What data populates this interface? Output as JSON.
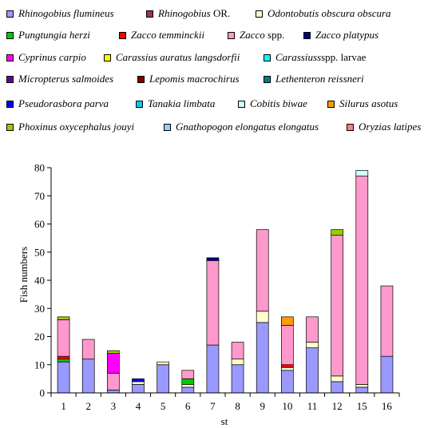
{
  "chart_data": {
    "type": "bar",
    "stacked": true,
    "xlabel": "st",
    "ylabel": "Fish numbers",
    "ylim": [
      0,
      80
    ],
    "yticks": [
      0,
      10,
      20,
      30,
      40,
      50,
      60,
      70,
      80
    ],
    "grid": false,
    "legend_position": "top",
    "categories": [
      "1",
      "2",
      "3",
      "4",
      "5",
      "6",
      "7",
      "8",
      "9",
      "10",
      "11",
      "12",
      "15",
      "16"
    ],
    "series": [
      {
        "name": "Rhinogobius flumineus",
        "name_suffix": "",
        "color": "#9999ff",
        "values": [
          11,
          12,
          1,
          3,
          10,
          2,
          17,
          10,
          25,
          8,
          16,
          4,
          2,
          13
        ]
      },
      {
        "name": "Rhinogobius",
        "name_suffix": " OR.",
        "color": "#993366",
        "values": [
          0,
          0,
          0,
          0,
          0,
          0,
          0,
          0,
          0,
          0,
          0,
          0,
          0,
          0
        ]
      },
      {
        "name": "Odontobutis obscura obscura",
        "name_suffix": "",
        "color": "#ffffcc",
        "values": [
          0,
          0,
          0,
          1,
          1,
          1,
          0,
          2,
          4,
          1,
          2,
          2,
          1,
          0
        ]
      },
      {
        "name": "Pungtungia herzi",
        "name_suffix": "",
        "color": "#00cc00",
        "values": [
          1,
          0,
          0,
          0,
          0,
          2,
          0,
          0,
          0,
          0,
          0,
          0,
          0,
          0
        ]
      },
      {
        "name": "Zacco temminckii",
        "name_suffix": "",
        "color": "#ff0000",
        "values": [
          1,
          0,
          0,
          0,
          0,
          0,
          0,
          0,
          0,
          1,
          0,
          0,
          0,
          0
        ]
      },
      {
        "name": "Zacco",
        "name_suffix": " spp.",
        "color": "#ff99cc",
        "values": [
          13,
          7,
          6,
          0,
          0,
          3,
          30,
          6,
          29,
          14,
          9,
          50,
          74,
          25
        ]
      },
      {
        "name": "Zacco platypus",
        "name_suffix": "",
        "color": "#000080",
        "values": [
          0,
          0,
          0,
          0,
          0,
          0,
          1,
          0,
          0,
          0,
          0,
          0,
          0,
          0
        ]
      },
      {
        "name": "Cyprinus carpio",
        "name_suffix": "",
        "color": "#ff00ff",
        "values": [
          0,
          0,
          7,
          0,
          0,
          0,
          0,
          0,
          0,
          0,
          0,
          0,
          0,
          0
        ]
      },
      {
        "name": "Carassius auratus langsdorfii",
        "name_suffix": "",
        "color": "#ffff00",
        "values": [
          0,
          0,
          0,
          0,
          0,
          0,
          0,
          0,
          0,
          0,
          0,
          0,
          0,
          0
        ]
      },
      {
        "name": "Carassiuss",
        "name_suffix": "spp. larvae",
        "color": "#00ffff",
        "values": [
          0,
          0,
          0,
          0,
          0,
          0,
          0,
          0,
          0,
          0,
          0,
          0,
          0,
          0
        ]
      },
      {
        "name": "Micropterus salmoides",
        "name_suffix": "",
        "color": "#660099",
        "values": [
          0,
          0,
          0,
          0,
          0,
          0,
          0,
          0,
          0,
          0,
          0,
          0,
          0,
          0
        ]
      },
      {
        "name": "Lepomis macrochirus",
        "name_suffix": "",
        "color": "#800000",
        "values": [
          0,
          0,
          0,
          0,
          0,
          0,
          0,
          0,
          0,
          0,
          0,
          0,
          0,
          0
        ]
      },
      {
        "name": "Lethenteron reissneri",
        "name_suffix": "",
        "color": "#008080",
        "values": [
          0,
          0,
          0,
          0,
          0,
          0,
          0,
          0,
          0,
          0,
          0,
          0,
          0,
          0
        ]
      },
      {
        "name": "Pseudorasbora parva",
        "name_suffix": "",
        "color": "#0000ff",
        "values": [
          0,
          0,
          0,
          1,
          0,
          0,
          0,
          0,
          0,
          0,
          0,
          0,
          0,
          0
        ]
      },
      {
        "name": "Tanakia limbata",
        "name_suffix": "",
        "color": "#00ccff",
        "values": [
          0,
          0,
          0,
          0,
          0,
          0,
          0,
          0,
          0,
          0,
          0,
          0,
          0,
          0
        ]
      },
      {
        "name": "Cobitis biwae",
        "name_suffix": "",
        "color": "#ccffff",
        "values": [
          0,
          0,
          0,
          0,
          0,
          0,
          0,
          0,
          0,
          0,
          0,
          0,
          2,
          0
        ]
      },
      {
        "name": "Silurus asotus",
        "name_suffix": "",
        "color": "#ff9900",
        "values": [
          0,
          0,
          0,
          0,
          0,
          0,
          0,
          0,
          0,
          3,
          0,
          0,
          0,
          0
        ]
      },
      {
        "name": "Phoxinus oxycephalus jouyi",
        "name_suffix": "",
        "color": "#99cc00",
        "values": [
          1,
          0,
          1,
          0,
          0,
          0,
          0,
          0,
          0,
          0,
          0,
          2,
          0,
          0
        ]
      },
      {
        "name": "Gnathopogon elongatus elongatus",
        "name_suffix": "",
        "color": "#99ccff",
        "values": [
          0,
          0,
          0,
          0,
          0,
          0,
          0,
          0,
          0,
          0,
          0,
          0,
          0,
          0
        ]
      },
      {
        "name": "Oryzias latipes",
        "name_suffix": "",
        "color": "#ff8080",
        "values": [
          0,
          0,
          0,
          0,
          0,
          0,
          0,
          0,
          0,
          0,
          0,
          0,
          0,
          0
        ]
      }
    ]
  }
}
